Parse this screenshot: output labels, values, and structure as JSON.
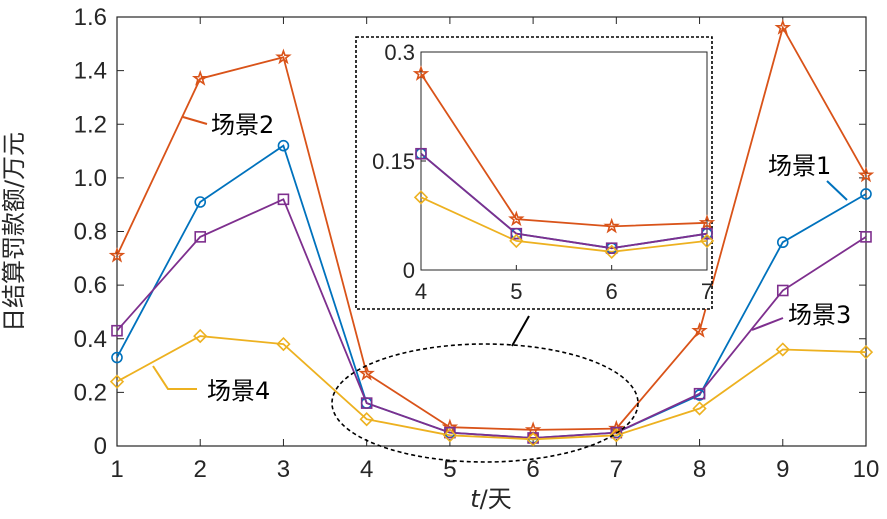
{
  "chart_data": {
    "type": "line",
    "xlabel_italic": "t",
    "xlabel_rest": "/天",
    "ylabel": "日结算罚款额/万元",
    "x": [
      1,
      2,
      3,
      4,
      5,
      6,
      7,
      8,
      9,
      10
    ],
    "xlim": [
      1,
      10
    ],
    "ylim": [
      0,
      1.6
    ],
    "xticks": [
      "1",
      "2",
      "3",
      "4",
      "5",
      "6",
      "7",
      "8",
      "9",
      "10"
    ],
    "yticks": [
      "0",
      "0.2",
      "0.4",
      "0.6",
      "0.8",
      "1.0",
      "1.2",
      "1.4",
      "1.6"
    ],
    "grid": false,
    "series": [
      {
        "name": "场景1",
        "color": "#0072BD",
        "marker": "circle",
        "values": [
          0.33,
          0.91,
          1.12,
          0.16,
          0.05,
          0.03,
          0.05,
          0.19,
          0.76,
          0.94
        ]
      },
      {
        "name": "场景2",
        "color": "#D95319",
        "marker": "star",
        "values": [
          0.71,
          1.37,
          1.45,
          0.27,
          0.07,
          0.06,
          0.065,
          0.43,
          1.56,
          1.01
        ]
      },
      {
        "name": "场景3",
        "color": "#7E2F8E",
        "marker": "square",
        "values": [
          0.43,
          0.78,
          0.92,
          0.16,
          0.05,
          0.03,
          0.05,
          0.195,
          0.58,
          0.78
        ]
      },
      {
        "name": "场景4",
        "color": "#EDB120",
        "marker": "diamond",
        "values": [
          0.24,
          0.41,
          0.38,
          0.1,
          0.04,
          0.025,
          0.04,
          0.14,
          0.36,
          0.35
        ]
      }
    ],
    "inset": {
      "xlim": [
        4,
        7
      ],
      "ylim": [
        0,
        0.3
      ],
      "xticks": [
        "4",
        "5",
        "6",
        "7"
      ],
      "yticks": [
        "0",
        "0.15",
        "0.3"
      ]
    }
  }
}
